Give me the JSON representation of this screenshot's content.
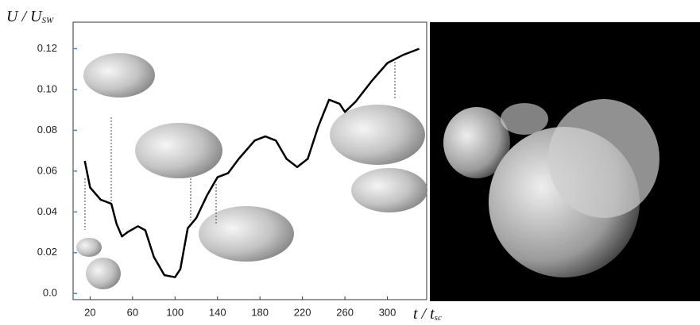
{
  "chart_data": {
    "type": "line",
    "y_label": {
      "main": "U / U",
      "sub": "SW"
    },
    "x_label": {
      "main": "t / t",
      "sub": "sc"
    },
    "x": [
      15,
      20,
      30,
      40,
      45,
      50,
      55,
      65,
      72,
      80,
      90,
      100,
      105,
      112,
      120,
      130,
      140,
      150,
      160,
      175,
      185,
      195,
      205,
      215,
      225,
      235,
      245,
      255,
      260,
      270,
      285,
      300,
      315,
      330
    ],
    "series": [
      {
        "color": "#000000",
        "values": [
          0.065,
          0.052,
          0.046,
          0.044,
          0.034,
          0.028,
          0.03,
          0.033,
          0.031,
          0.018,
          0.009,
          0.008,
          0.012,
          0.032,
          0.037,
          0.048,
          0.057,
          0.059,
          0.066,
          0.075,
          0.077,
          0.075,
          0.066,
          0.062,
          0.066,
          0.082,
          0.095,
          0.093,
          0.089,
          0.094,
          0.104,
          0.113,
          0.117,
          0.12
        ]
      }
    ],
    "xlim": [
      4,
      337
    ],
    "ylim": [
      -0.003,
      0.133
    ],
    "xticks": [
      20,
      60,
      100,
      140,
      180,
      220,
      260,
      300
    ],
    "yticks": [
      {
        "value": 0,
        "label": "0.0"
      },
      0.02,
      0.04,
      0.06,
      0.08,
      {
        "value": 0.1,
        "label": "0.10"
      },
      0.12
    ],
    "tick_color": "#4a7fc1"
  }
}
